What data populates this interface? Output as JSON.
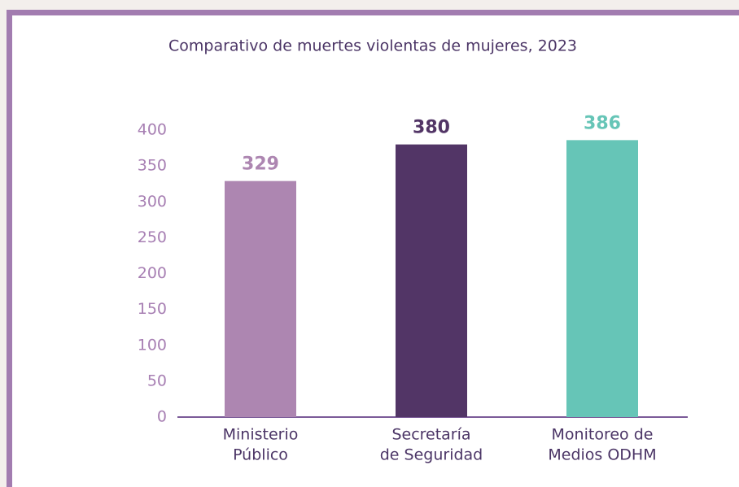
{
  "chart_data": {
    "type": "bar",
    "title": "Comparativo de muertes violentas de mujeres, 2023",
    "categories": [
      [
        "Ministerio",
        "Público"
      ],
      [
        "Secretaría",
        "de Seguridad"
      ],
      [
        "Monitoreo de",
        "Medios ODHM"
      ]
    ],
    "values": [
      329,
      380,
      386
    ],
    "colors": [
      "#ad86b1",
      "#523566",
      "#66c5b7"
    ],
    "ylim": [
      0,
      400
    ],
    "yticks": [
      0,
      50,
      100,
      150,
      200,
      250,
      300,
      350,
      400
    ],
    "grid": false
  }
}
